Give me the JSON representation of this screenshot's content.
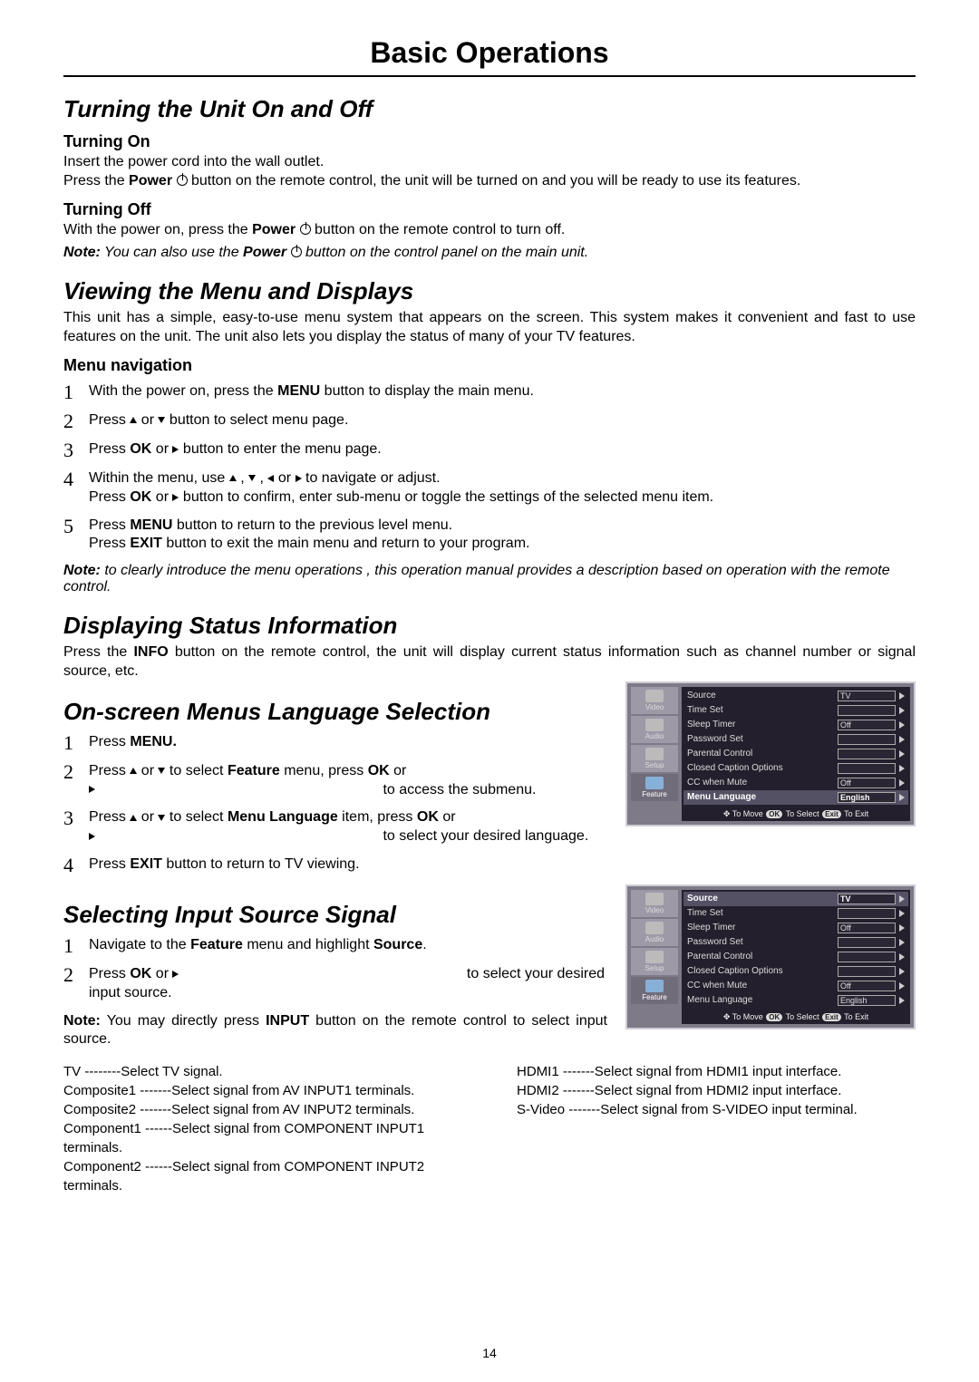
{
  "page_number": "14",
  "page_title": "Basic Operations",
  "s1": {
    "heading": "Turning the Unit On and Off",
    "on_heading": "Turning On",
    "on_line1": "Insert the power cord into the wall outlet.",
    "on_line2a": "Press the ",
    "on_line2b": "Power",
    "on_line2c": " button on the remote control, the unit will be turned on and you will be ready to use its features.",
    "off_heading": "Turning Off",
    "off_a": "With the power on, press the ",
    "off_b": "Power",
    "off_c": " button on the remote control to turn off.",
    "note_label": "Note:",
    "note_a": " You can also use the ",
    "note_b": "Power",
    "note_c": " button on the control panel on the main unit."
  },
  "s2": {
    "heading": "Viewing the Menu and Displays",
    "intro": "This unit has a simple, easy-to-use menu system that appears on the screen. This system makes it convenient and fast to use features on the unit. The unit also lets you display the status of many of your TV features.",
    "nav_heading": "Menu navigation",
    "step1a": "With the power on, press the ",
    "step1b": "MENU",
    "step1c": " button to display the main menu.",
    "step2a": "Press ",
    "step2b": " or ",
    "step2c": " button to select menu page.",
    "step3a": "Press  ",
    "step3b": "OK",
    "step3c": " or  ",
    "step3d": " button to enter the menu page.",
    "step4a": "Within the menu, use ",
    "step4b": " to navigate or adjust.",
    "step4c": "Press ",
    "step4d": "OK",
    "step4e": " or ",
    "step4f": " button to confirm, enter sub-menu or toggle the settings of the selected menu item.",
    "step5a": "Press ",
    "step5b": "MENU",
    "step5c": " button to return to the previous level menu.",
    "step5d": "Press ",
    "step5e": "EXIT",
    "step5f": " button to exit the main menu and return to your program.",
    "note_label": "Note:",
    "note_text": " to clearly introduce the menu operations , this operation manual provides a description based on operation with the remote control."
  },
  "s3": {
    "heading": "Displaying Status Information",
    "text_a": "Press the ",
    "text_b": "INFO",
    "text_c": " button on the remote control, the unit will display current status information such as channel number or signal source, etc."
  },
  "s4": {
    "heading": "On-screen Menus Language Selection",
    "step1a": "Press ",
    "step1b": "MENU.",
    "step2a": "Press ",
    "step2b": " or ",
    "step2c": " to select ",
    "step2d": "Feature",
    "step2e": " menu, press ",
    "step2f": "OK",
    "step2g": " or ",
    "step2h": " to access the submenu.",
    "step3a": "Press ",
    "step3b": " or ",
    "step3c": " to select ",
    "step3d": "Menu Language",
    "step3e": " item, press ",
    "step3f": "OK",
    "step3g": "  or ",
    "step3h": " to select your desired language.",
    "step4a": "Press ",
    "step4b": "EXIT",
    "step4c": " button to return to TV viewing."
  },
  "s5": {
    "heading": "Selecting Input Source Signal",
    "step1a": "Navigate to the ",
    "step1b": "Feature",
    "step1c": " menu and highlight ",
    "step1d": "Source",
    "step1e": ".",
    "step2a": "Press ",
    "step2b": "OK",
    "step2c": " or ",
    "step2d": " to select your desired input source.",
    "note_label": "Note:",
    "note_a": " You may directly press ",
    "note_b": "INPUT",
    "note_c": " button on the remote control to select input source."
  },
  "sources": {
    "left": [
      {
        "k": "TV",
        "v": "--------Select TV signal."
      },
      {
        "k": "Composite1",
        "v": "-------Select signal from AV INPUT1 terminals."
      },
      {
        "k": "Composite2",
        "v": "-------Select signal from AV INPUT2  terminals."
      },
      {
        "k": "Component1",
        "v": "------Select signal from COMPONENT INPUT1 terminals."
      },
      {
        "k": "Component2",
        "v": "------Select signal from COMPONENT INPUT2 terminals."
      }
    ],
    "right": [
      {
        "k": "HDMI1",
        "v": "-------Select signal from HDMI1 input interface."
      },
      {
        "k": "HDMI2",
        "v": "-------Select signal from HDMI2 input interface."
      },
      {
        "k": "S-Video",
        "v": "-------Select signal from S-VIDEO input  terminal."
      }
    ]
  },
  "osd": {
    "tabs": [
      "Video",
      "Audio",
      "Setup",
      "Feature"
    ],
    "rows": [
      {
        "label": "Source",
        "value": "TV"
      },
      {
        "label": "Time Set",
        "value": ""
      },
      {
        "label": "Sleep Timer",
        "value": "Off"
      },
      {
        "label": "Password Set",
        "value": ""
      },
      {
        "label": "Parental Control",
        "value": ""
      },
      {
        "label": "Closed Caption Options",
        "value": ""
      },
      {
        "label": "CC when Mute",
        "value": "Off"
      },
      {
        "label": "Menu Language",
        "value": "English"
      }
    ],
    "footer_move": "To Move",
    "footer_ok": "OK",
    "footer_select": "To Select",
    "footer_exit": "Exit",
    "footer_toexit": "To Exit",
    "highlight_a": 7,
    "highlight_b": 0
  },
  "colors": {
    "osd_outer": "#7e7a88",
    "osd_border": "#cfccd5",
    "osd_tab": "#9d99a7",
    "osd_tab_active": "#706c7a",
    "osd_main": "#231f2c",
    "osd_row_hl": "#555165"
  }
}
